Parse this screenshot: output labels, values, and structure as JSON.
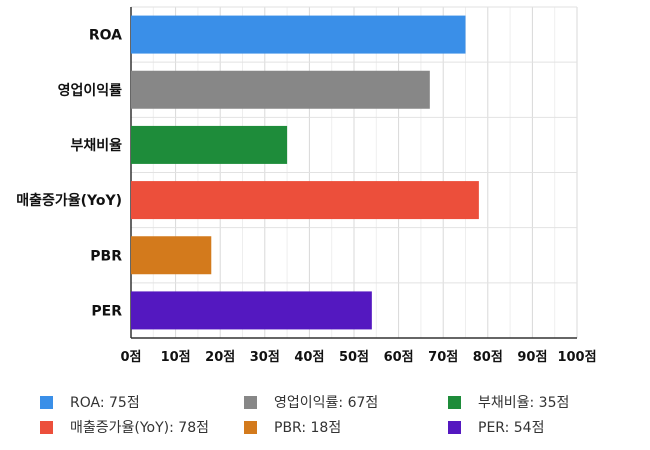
{
  "chart_data": {
    "type": "bar",
    "orientation": "horizontal",
    "categories": [
      "ROA",
      "영업이익률",
      "부채비율",
      "매출증가율(YoY)",
      "PBR",
      "PER"
    ],
    "values": [
      75,
      67,
      35,
      78,
      18,
      54
    ],
    "colors": [
      "#3a8fe8",
      "#878787",
      "#1e8c3a",
      "#ec4f3b",
      "#d37a1c",
      "#5418c0"
    ],
    "xlim": [
      0,
      100
    ],
    "x_ticks": [
      "0점",
      "10점",
      "20점",
      "30점",
      "40점",
      "50점",
      "60점",
      "70점",
      "80점",
      "90점",
      "100점"
    ],
    "grid": true,
    "legend_position": "bottom",
    "legend": [
      {
        "label": "ROA: 75점",
        "color": "#3a8fe8"
      },
      {
        "label": "영업이익률: 67점",
        "color": "#878787"
      },
      {
        "label": "부채비율: 35점",
        "color": "#1e8c3a"
      },
      {
        "label": "매출증가율(YoY): 78점",
        "color": "#ec4f3b"
      },
      {
        "label": "PBR: 18점",
        "color": "#d37a1c"
      },
      {
        "label": "PER: 54점",
        "color": "#5418c0"
      }
    ]
  }
}
